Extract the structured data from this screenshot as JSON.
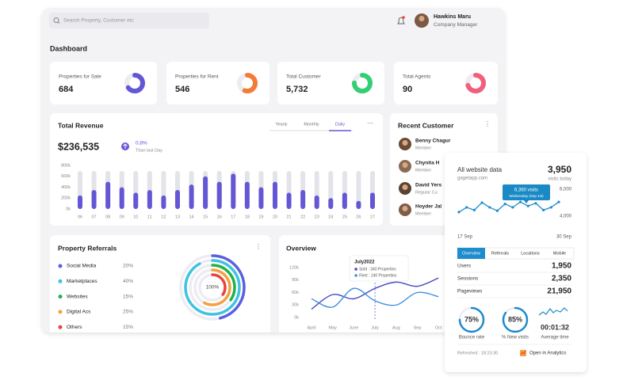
{
  "header": {
    "search_placeholder": "Search Property, Customer etc",
    "user_name": "Hawkins Maru",
    "user_role": "Company Manager"
  },
  "page_title": "Dashboard",
  "stats": [
    {
      "label": "Properties for Sale",
      "value": "684",
      "progress": 65,
      "color": "#6457d6"
    },
    {
      "label": "Properties for Rent",
      "value": "546",
      "progress": 55,
      "color": "#f47b36"
    },
    {
      "label": "Total Customer",
      "value": "5,732",
      "progress": 75,
      "color": "#33cf74"
    },
    {
      "label": "Total Agents",
      "value": "90",
      "progress": 70,
      "color": "#f25f7c"
    }
  ],
  "revenue": {
    "title": "Total Revenue",
    "tabs": [
      "Yearly",
      "Monthly",
      "Daily"
    ],
    "active_tab": 2,
    "total": "$236,535",
    "change": "0,8%",
    "change_note": "Than last Day"
  },
  "customers": {
    "title": "Recent Customer",
    "items": [
      {
        "name": "Benny Chagur",
        "role": "Member"
      },
      {
        "name": "Chynita H",
        "role": "Member"
      },
      {
        "name": "David Yers",
        "role": "Regular Cu"
      },
      {
        "name": "Hoyder Jal",
        "role": "Member"
      }
    ]
  },
  "website": {
    "visits": "3,950",
    "visits_label": "visits today",
    "tabs": [
      "Overview",
      "Referrals",
      "Locations",
      "Mobile"
    ],
    "active_tab": 0,
    "metrics": [
      {
        "label": "Users",
        "value": "1,950"
      },
      {
        "label": "Sessions",
        "value": "2,350"
      },
      {
        "label": "Pageviews",
        "value": "21,950"
      }
    ],
    "gauges": [
      {
        "value": 75,
        "value_label": "75%",
        "label": "Bounce rate"
      },
      {
        "value": 85,
        "value_label": "85%",
        "label": "% New visits"
      }
    ],
    "average_time": "00:01:32",
    "average_time_label": "Average time",
    "refreshed": "Refreshed : 18:23:30",
    "analytics_link": "Open in Analytics"
  },
  "chart_data": [
    {
      "type": "bar",
      "categories": [
        "06",
        "07",
        "08",
        "09",
        "10",
        "11",
        "12",
        "13",
        "14",
        "15",
        "16",
        "17",
        "18",
        "19",
        "20",
        "21",
        "22",
        "23",
        "24",
        "25",
        "26",
        "27"
      ],
      "values": [
        250,
        350,
        500,
        400,
        300,
        350,
        250,
        350,
        450,
        600,
        500,
        650,
        500,
        400,
        500,
        300,
        350,
        250,
        200,
        300,
        150,
        300
      ],
      "color": "#6457d6",
      "track_color": "#e3e3ea",
      "ylim": [
        0,
        800
      ],
      "yticks": [
        {
          "value": 0,
          "label": "0k"
        },
        {
          "value": 200,
          "label": "200k"
        },
        {
          "value": 400,
          "label": "400k"
        },
        {
          "value": 600,
          "label": "600k"
        },
        {
          "value": 800,
          "label": "800k"
        }
      ]
    },
    {
      "type": "radial",
      "title": "Property Referrals",
      "categories": [
        "Social Media",
        "Marketplaces",
        "Websites",
        "Digital Acs",
        "Others"
      ],
      "values": [
        20,
        40,
        15,
        25,
        15
      ],
      "value_labels": [
        "20%",
        "40%",
        "15%",
        "25%",
        "15%"
      ],
      "colors": [
        "#5b5fe0",
        "#3fc3e0",
        "#22b14c",
        "#f4a040",
        "#e8453c"
      ],
      "center_label": "100%"
    },
    {
      "type": "line",
      "title": "Overview",
      "categories": [
        "April",
        "May",
        "June",
        "July",
        "Aug",
        "Sep",
        "Oct"
      ],
      "series": [
        {
          "color": "#4548c2",
          "values": [
            20,
            55,
            45,
            70,
            85,
            75,
            95
          ]
        },
        {
          "color": "#3d8fe0",
          "values": [
            45,
            25,
            70,
            40,
            30,
            60,
            50
          ]
        }
      ],
      "ylim": [
        0,
        120
      ],
      "yticks": [
        {
          "value": 0,
          "label": "0k"
        },
        {
          "value": 30,
          "label": "30k"
        },
        {
          "value": 60,
          "label": "60k"
        },
        {
          "value": 90,
          "label": "90k"
        },
        {
          "value": 120,
          "label": "120k"
        }
      ],
      "annotation": {
        "at": "July",
        "title": "July2022",
        "lines": [
          "Sold : 340 Properties",
          "Rent : 140 Properties"
        ]
      }
    },
    {
      "type": "line",
      "title": "All website data",
      "subtitle": "gagetapp.com",
      "categories": [
        "17 Sep",
        null,
        null,
        null,
        null,
        null,
        null,
        null,
        null,
        null,
        null,
        null,
        null,
        "30 Sep"
      ],
      "values": [
        4300,
        4650,
        4450,
        5000,
        4650,
        4400,
        4900,
        4650,
        5050,
        4750,
        4950,
        4450,
        4650,
        5050
      ],
      "color": "#1e8ccd",
      "ylim": [
        3300,
        6400
      ],
      "yticks": [
        {
          "value": 4000,
          "label": "4,000"
        },
        {
          "value": 6000,
          "label": "6,000"
        }
      ],
      "annotation": {
        "lines": [
          "6,360 visits",
          "Wednesday (Sep 1st)"
        ]
      }
    }
  ]
}
